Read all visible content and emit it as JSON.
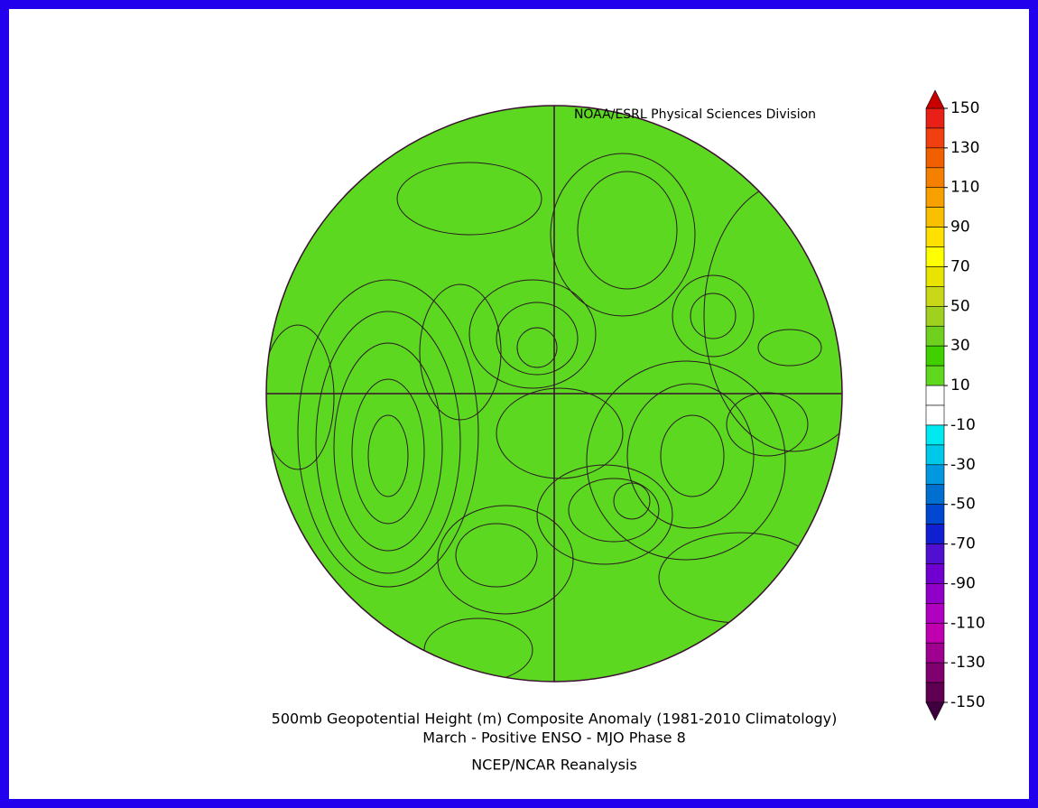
{
  "header": {
    "credit": "NOAA/ESRL Physical Sciences Division"
  },
  "footer": {
    "title": "500mb Geopotential Height (m) Composite Anomaly (1981-2010 Climatology)",
    "subtitle": "March - Positive ENSO - MJO Phase 8",
    "source": "NCEP/NCAR Reanalysis"
  },
  "colorbar": {
    "range": [
      -150,
      150
    ],
    "ticks": [
      150,
      130,
      110,
      90,
      70,
      50,
      30,
      10,
      -10,
      -30,
      -50,
      -70,
      -90,
      -110,
      -130,
      -150
    ],
    "step": 10,
    "colors": [
      "#e82018",
      "#f04010",
      "#f06000",
      "#f58000",
      "#f8a000",
      "#f8c000",
      "#ffe000",
      "#ffff00",
      "#e8e400",
      "#c8d818",
      "#a0d020",
      "#70d020",
      "#40d000",
      "#60d820",
      "#ffffff",
      "#ffffff",
      "#00e8f0",
      "#00c8e8",
      "#0098e0",
      "#0070d0",
      "#0048d0",
      "#1020d0",
      "#5010d0",
      "#7000d0",
      "#9000c8",
      "#b000c0",
      "#c000b0",
      "#a00090",
      "#800070",
      "#600050"
    ],
    "over_color": "#c80000",
    "under_color": "#400040"
  }
}
